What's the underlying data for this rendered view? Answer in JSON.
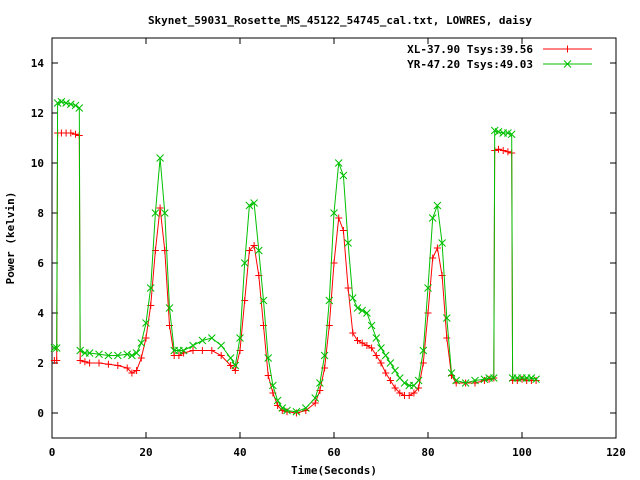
{
  "chart_data": {
    "type": "line",
    "title": "Skynet_59031_Rosette_MS_45122_54745_cal.txt, LOWRES, daisy",
    "xlabel": "Time(Seconds)",
    "ylabel": "Power (kelvin)",
    "xlim": [
      0,
      120
    ],
    "ylim": [
      -1,
      15
    ],
    "xticks": [
      0,
      20,
      40,
      60,
      80,
      100,
      120
    ],
    "yticks": [
      0,
      2,
      4,
      6,
      8,
      10,
      12,
      14
    ],
    "grid": false,
    "legend_position": "top-right",
    "series": [
      {
        "name": "XL-37.90 Tsys:39.56",
        "color": "#ff0000",
        "marker": "plus",
        "points": [
          [
            0.5,
            2.1
          ],
          [
            1,
            2.1
          ],
          [
            1.2,
            11.2
          ],
          [
            2,
            11.2
          ],
          [
            3,
            11.2
          ],
          [
            4,
            11.2
          ],
          [
            5,
            11.15
          ],
          [
            5.8,
            11.1
          ],
          [
            6,
            2.1
          ],
          [
            7,
            2.05
          ],
          [
            8,
            2.0
          ],
          [
            10,
            2.0
          ],
          [
            12,
            1.95
          ],
          [
            14,
            1.9
          ],
          [
            16,
            1.8
          ],
          [
            17,
            1.6
          ],
          [
            18,
            1.7
          ],
          [
            19,
            2.2
          ],
          [
            20,
            3.0
          ],
          [
            21,
            4.3
          ],
          [
            22,
            6.5
          ],
          [
            23,
            8.2
          ],
          [
            24,
            6.5
          ],
          [
            25,
            3.5
          ],
          [
            26,
            2.3
          ],
          [
            27,
            2.3
          ],
          [
            28,
            2.4
          ],
          [
            30,
            2.5
          ],
          [
            32,
            2.5
          ],
          [
            34,
            2.5
          ],
          [
            36,
            2.3
          ],
          [
            38,
            1.9
          ],
          [
            39,
            1.7
          ],
          [
            40,
            2.5
          ],
          [
            41,
            4.5
          ],
          [
            42,
            6.5
          ],
          [
            43,
            6.7
          ],
          [
            44,
            5.5
          ],
          [
            45,
            3.5
          ],
          [
            46,
            1.5
          ],
          [
            47,
            0.8
          ],
          [
            48,
            0.3
          ],
          [
            49,
            0.1
          ],
          [
            50,
            0.05
          ],
          [
            52,
            0.0
          ],
          [
            54,
            0.1
          ],
          [
            56,
            0.4
          ],
          [
            57,
            0.9
          ],
          [
            58,
            1.8
          ],
          [
            59,
            3.5
          ],
          [
            60,
            6.0
          ],
          [
            61,
            7.8
          ],
          [
            62,
            7.3
          ],
          [
            63,
            5.0
          ],
          [
            64,
            3.2
          ],
          [
            65,
            2.9
          ],
          [
            66,
            2.8
          ],
          [
            67,
            2.7
          ],
          [
            68,
            2.6
          ],
          [
            69,
            2.3
          ],
          [
            70,
            2.0
          ],
          [
            71,
            1.6
          ],
          [
            72,
            1.3
          ],
          [
            73,
            1.0
          ],
          [
            74,
            0.8
          ],
          [
            75,
            0.7
          ],
          [
            76,
            0.7
          ],
          [
            77,
            0.8
          ],
          [
            78,
            1.0
          ],
          [
            79,
            2.0
          ],
          [
            80,
            4.0
          ],
          [
            81,
            6.2
          ],
          [
            82,
            6.6
          ],
          [
            83,
            5.5
          ],
          [
            84,
            3.0
          ],
          [
            85,
            1.5
          ],
          [
            86,
            1.2
          ],
          [
            88,
            1.2
          ],
          [
            90,
            1.2
          ],
          [
            92,
            1.3
          ],
          [
            93,
            1.35
          ],
          [
            94,
            1.4
          ],
          [
            94.2,
            10.5
          ],
          [
            95,
            10.55
          ],
          [
            96,
            10.5
          ],
          [
            97,
            10.45
          ],
          [
            97.8,
            10.4
          ],
          [
            98,
            1.3
          ],
          [
            99,
            1.3
          ],
          [
            100,
            1.35
          ],
          [
            101,
            1.3
          ],
          [
            102,
            1.3
          ],
          [
            103,
            1.3
          ]
        ]
      },
      {
        "name": "YR-47.20 Tsys:49.03",
        "color": "#00c000",
        "marker": "cross",
        "points": [
          [
            0.5,
            2.6
          ],
          [
            1,
            2.6
          ],
          [
            1.2,
            12.4
          ],
          [
            2,
            12.45
          ],
          [
            3,
            12.4
          ],
          [
            4,
            12.35
          ],
          [
            5,
            12.3
          ],
          [
            5.8,
            12.2
          ],
          [
            6,
            2.5
          ],
          [
            7,
            2.4
          ],
          [
            8,
            2.4
          ],
          [
            10,
            2.35
          ],
          [
            12,
            2.3
          ],
          [
            14,
            2.3
          ],
          [
            16,
            2.35
          ],
          [
            17,
            2.3
          ],
          [
            18,
            2.4
          ],
          [
            19,
            2.8
          ],
          [
            20,
            3.6
          ],
          [
            21,
            5.0
          ],
          [
            22,
            8.0
          ],
          [
            23,
            10.2
          ],
          [
            24,
            8.0
          ],
          [
            25,
            4.2
          ],
          [
            26,
            2.5
          ],
          [
            27,
            2.5
          ],
          [
            28,
            2.5
          ],
          [
            30,
            2.7
          ],
          [
            32,
            2.9
          ],
          [
            34,
            3.0
          ],
          [
            36,
            2.7
          ],
          [
            38,
            2.2
          ],
          [
            39,
            1.9
          ],
          [
            40,
            3.0
          ],
          [
            41,
            6.0
          ],
          [
            42,
            8.3
          ],
          [
            43,
            8.4
          ],
          [
            44,
            6.5
          ],
          [
            45,
            4.5
          ],
          [
            46,
            2.2
          ],
          [
            47,
            1.1
          ],
          [
            48,
            0.5
          ],
          [
            49,
            0.2
          ],
          [
            50,
            0.1
          ],
          [
            52,
            0.05
          ],
          [
            54,
            0.2
          ],
          [
            56,
            0.6
          ],
          [
            57,
            1.2
          ],
          [
            58,
            2.3
          ],
          [
            59,
            4.5
          ],
          [
            60,
            8.0
          ],
          [
            61,
            10.0
          ],
          [
            62,
            9.5
          ],
          [
            63,
            6.8
          ],
          [
            64,
            4.6
          ],
          [
            65,
            4.2
          ],
          [
            66,
            4.1
          ],
          [
            67,
            4.0
          ],
          [
            68,
            3.5
          ],
          [
            69,
            3.0
          ],
          [
            70,
            2.6
          ],
          [
            71,
            2.3
          ],
          [
            72,
            2.0
          ],
          [
            73,
            1.7
          ],
          [
            74,
            1.4
          ],
          [
            75,
            1.2
          ],
          [
            76,
            1.1
          ],
          [
            77,
            1.1
          ],
          [
            78,
            1.3
          ],
          [
            79,
            2.5
          ],
          [
            80,
            5.0
          ],
          [
            81,
            7.8
          ],
          [
            82,
            8.3
          ],
          [
            83,
            6.8
          ],
          [
            84,
            3.8
          ],
          [
            85,
            1.6
          ],
          [
            86,
            1.3
          ],
          [
            88,
            1.2
          ],
          [
            90,
            1.3
          ],
          [
            92,
            1.35
          ],
          [
            93,
            1.4
          ],
          [
            94,
            1.4
          ],
          [
            94.2,
            11.3
          ],
          [
            95,
            11.25
          ],
          [
            96,
            11.2
          ],
          [
            97,
            11.2
          ],
          [
            97.8,
            11.15
          ],
          [
            98,
            1.4
          ],
          [
            99,
            1.4
          ],
          [
            100,
            1.4
          ],
          [
            101,
            1.4
          ],
          [
            102,
            1.4
          ],
          [
            103,
            1.35
          ]
        ]
      }
    ]
  }
}
